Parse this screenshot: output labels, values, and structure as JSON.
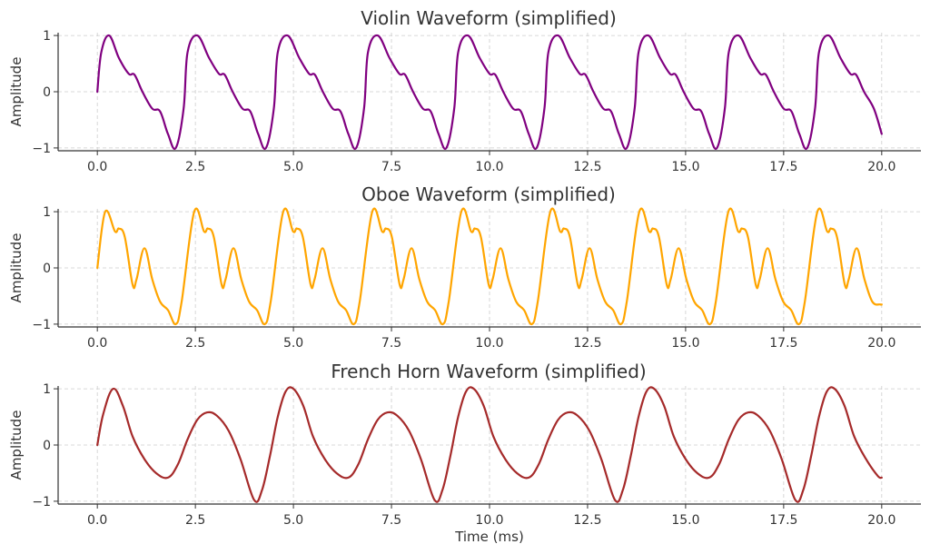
{
  "chart_data": [
    {
      "type": "line",
      "title": "Violin Waveform (simplified)",
      "xlabel": "",
      "ylabel": "Amplitude",
      "xlim": [
        -1.0,
        21.0
      ],
      "ylim": [
        -1.05,
        1.05
      ],
      "xticks": [
        0.0,
        2.5,
        5.0,
        7.5,
        10.0,
        12.5,
        15.0,
        17.5,
        20.0
      ],
      "xtick_labels": [
        "0.0",
        "2.5",
        "5.0",
        "7.5",
        "10.0",
        "12.5",
        "15.0",
        "17.5",
        "20.0"
      ],
      "yticks": [
        1,
        0,
        -1
      ],
      "ytick_labels": [
        "1",
        "0",
        "−1"
      ],
      "grid": true,
      "color": "#800080",
      "series": [
        {
          "x": [
            0.0,
            0.1,
            0.3,
            0.55,
            0.8,
            0.95,
            1.15,
            1.4,
            1.6,
            1.8,
            2.0,
            2.2,
            2.3,
            2.55,
            2.85,
            3.1,
            3.25,
            3.45,
            3.7,
            3.9,
            4.1,
            4.3,
            4.5,
            4.6,
            4.85,
            5.15,
            5.4,
            5.55,
            5.75,
            6.0,
            6.2,
            6.4,
            6.6,
            6.8,
            6.9,
            7.15,
            7.45,
            7.7,
            7.85,
            8.05,
            8.3,
            8.5,
            8.7,
            8.9,
            9.1,
            9.2,
            9.45,
            9.75,
            10.0,
            10.15,
            10.35,
            10.6,
            10.8,
            11.0,
            11.2,
            11.4,
            11.5,
            11.75,
            12.05,
            12.3,
            12.45,
            12.65,
            12.9,
            13.1,
            13.3,
            13.5,
            13.7,
            13.8,
            14.05,
            14.35,
            14.6,
            14.75,
            14.95,
            15.2,
            15.4,
            15.6,
            15.8,
            16.0,
            16.1,
            16.35,
            16.65,
            16.9,
            17.05,
            17.25,
            17.5,
            17.7,
            17.9,
            18.1,
            18.3,
            18.4,
            18.65,
            18.95,
            19.2,
            19.35,
            19.55,
            19.8,
            20.0
          ],
          "values": [
            0.0,
            0.7,
            1.0,
            0.6,
            0.32,
            0.3,
            0.0,
            -0.3,
            -0.35,
            -0.75,
            -1.0,
            -0.3,
            0.7,
            1.0,
            0.6,
            0.32,
            0.3,
            0.0,
            -0.3,
            -0.35,
            -0.75,
            -1.0,
            -0.3,
            0.7,
            1.0,
            0.6,
            0.32,
            0.3,
            0.0,
            -0.3,
            -0.35,
            -0.75,
            -1.0,
            -0.3,
            0.7,
            1.0,
            0.6,
            0.32,
            0.3,
            0.0,
            -0.3,
            -0.35,
            -0.75,
            -1.0,
            -0.3,
            0.7,
            1.0,
            0.6,
            0.32,
            0.3,
            0.0,
            -0.3,
            -0.35,
            -0.75,
            -1.0,
            -0.3,
            0.7,
            1.0,
            0.6,
            0.32,
            0.3,
            0.0,
            -0.3,
            -0.35,
            -0.75,
            -1.0,
            -0.3,
            0.7,
            1.0,
            0.6,
            0.32,
            0.3,
            0.0,
            -0.3,
            -0.35,
            -0.75,
            -1.0,
            -0.3,
            0.7,
            1.0,
            0.6,
            0.32,
            0.3,
            0.0,
            -0.3,
            -0.35,
            -0.75,
            -1.0,
            -0.3,
            0.7,
            1.0,
            0.6,
            0.32,
            0.3,
            0.0,
            -0.3,
            -0.75
          ]
        }
      ]
    },
    {
      "type": "line",
      "title": "Oboe Waveform (simplified)",
      "xlabel": "",
      "ylabel": "Amplitude",
      "xlim": [
        -1.0,
        21.0
      ],
      "ylim": [
        -1.05,
        1.05
      ],
      "xticks": [
        0.0,
        2.5,
        5.0,
        7.5,
        10.0,
        12.5,
        15.0,
        17.5,
        20.0
      ],
      "xtick_labels": [
        "0.0",
        "2.5",
        "5.0",
        "7.5",
        "10.0",
        "12.5",
        "15.0",
        "17.5",
        "20.0"
      ],
      "yticks": [
        1,
        0,
        -1
      ],
      "ytick_labels": [
        "1",
        "0",
        "−1"
      ],
      "grid": true,
      "color": "#ffa500",
      "series": [
        {
          "x": [
            0.0,
            0.2,
            0.45,
            0.55,
            0.7,
            0.9,
            1.0,
            1.2,
            1.4,
            1.6,
            1.8,
            2.0,
            2.15,
            2.47,
            2.72,
            2.82,
            2.97,
            3.17,
            3.27,
            3.47,
            3.67,
            3.87,
            4.07,
            4.27,
            4.42,
            4.74,
            4.99,
            5.09,
            5.24,
            5.44,
            5.54,
            5.74,
            5.94,
            6.14,
            6.34,
            6.54,
            6.69,
            7.01,
            7.26,
            7.36,
            7.51,
            7.71,
            7.81,
            8.01,
            8.21,
            8.41,
            8.61,
            8.81,
            8.96,
            9.28,
            9.53,
            9.63,
            9.78,
            9.98,
            10.08,
            10.28,
            10.48,
            10.68,
            10.88,
            11.08,
            11.23,
            11.55,
            11.8,
            11.9,
            12.05,
            12.25,
            12.35,
            12.55,
            12.75,
            12.95,
            13.15,
            13.35,
            13.5,
            13.82,
            14.07,
            14.17,
            14.32,
            14.52,
            14.62,
            14.82,
            15.02,
            15.22,
            15.42,
            15.62,
            15.77,
            16.09,
            16.34,
            16.44,
            16.59,
            16.79,
            16.89,
            17.09,
            17.29,
            17.49,
            17.69,
            17.89,
            18.04,
            18.36,
            18.61,
            18.71,
            18.86,
            19.06,
            19.16,
            19.36,
            19.56,
            19.76,
            19.96,
            20.0
          ],
          "values": [
            0.0,
            1.0,
            0.65,
            0.7,
            0.55,
            -0.3,
            -0.2,
            0.35,
            -0.2,
            -0.6,
            -0.75,
            -1.0,
            -0.6,
            1.0,
            0.65,
            0.7,
            0.55,
            -0.3,
            -0.2,
            0.35,
            -0.2,
            -0.6,
            -0.75,
            -1.0,
            -0.6,
            1.0,
            0.65,
            0.7,
            0.55,
            -0.3,
            -0.2,
            0.35,
            -0.2,
            -0.6,
            -0.75,
            -1.0,
            -0.6,
            1.0,
            0.65,
            0.7,
            0.55,
            -0.3,
            -0.2,
            0.35,
            -0.2,
            -0.6,
            -0.75,
            -1.0,
            -0.6,
            1.0,
            0.65,
            0.7,
            0.55,
            -0.3,
            -0.2,
            0.35,
            -0.2,
            -0.6,
            -0.75,
            -1.0,
            -0.6,
            1.0,
            0.65,
            0.7,
            0.55,
            -0.3,
            -0.2,
            0.35,
            -0.2,
            -0.6,
            -0.75,
            -1.0,
            -0.6,
            1.0,
            0.65,
            0.7,
            0.55,
            -0.3,
            -0.2,
            0.35,
            -0.2,
            -0.6,
            -0.75,
            -1.0,
            -0.6,
            1.0,
            0.65,
            0.7,
            0.55,
            -0.3,
            -0.2,
            0.35,
            -0.2,
            -0.6,
            -0.75,
            -1.0,
            -0.6,
            1.0,
            0.65,
            0.7,
            0.55,
            -0.3,
            -0.2,
            0.35,
            -0.2,
            -0.6,
            -0.65,
            -0.65
          ]
        }
      ]
    },
    {
      "type": "line",
      "title": "French Horn Waveform (simplified)",
      "xlabel": "Time (ms)",
      "ylabel": "Amplitude",
      "xlim": [
        -1.0,
        21.0
      ],
      "ylim": [
        -1.05,
        1.05
      ],
      "xticks": [
        0.0,
        2.5,
        5.0,
        7.5,
        10.0,
        12.5,
        15.0,
        17.5,
        20.0
      ],
      "xtick_labels": [
        "0.0",
        "2.5",
        "5.0",
        "7.5",
        "10.0",
        "12.5",
        "15.0",
        "17.5",
        "20.0"
      ],
      "yticks": [
        1,
        0,
        -1
      ],
      "ytick_labels": [
        "1",
        "0",
        "−1"
      ],
      "grid": true,
      "color": "#a52a2a",
      "series": [
        {
          "x": [
            0.0,
            0.15,
            0.4,
            0.65,
            0.9,
            1.2,
            1.5,
            1.8,
            2.05,
            2.3,
            2.55,
            2.8,
            3.05,
            3.35,
            3.65,
            4.0,
            4.2,
            4.4,
            4.6,
            4.8,
            5.0,
            5.25,
            5.5,
            5.8,
            6.1,
            6.4,
            6.65,
            6.9,
            7.15,
            7.4,
            7.65,
            7.95,
            8.25,
            8.6,
            8.8,
            9.0,
            9.2,
            9.4,
            9.6,
            9.85,
            10.1,
            10.4,
            10.7,
            11.0,
            11.25,
            11.5,
            11.75,
            12.0,
            12.25,
            12.55,
            12.85,
            13.2,
            13.4,
            13.6,
            13.8,
            14.0,
            14.2,
            14.45,
            14.7,
            15.0,
            15.3,
            15.6,
            15.85,
            16.1,
            16.35,
            16.6,
            16.85,
            17.15,
            17.45,
            17.8,
            18.0,
            18.2,
            18.4,
            18.6,
            18.8,
            19.05,
            19.3,
            19.6,
            19.9,
            20.0
          ],
          "values": [
            0.0,
            0.55,
            1.0,
            0.7,
            0.15,
            -0.25,
            -0.5,
            -0.58,
            -0.35,
            0.1,
            0.45,
            0.58,
            0.52,
            0.25,
            -0.25,
            -0.98,
            -0.8,
            -0.2,
            0.5,
            0.95,
            1.0,
            0.7,
            0.15,
            -0.25,
            -0.5,
            -0.58,
            -0.35,
            0.1,
            0.45,
            0.58,
            0.52,
            0.25,
            -0.25,
            -0.98,
            -0.8,
            -0.2,
            0.5,
            0.95,
            1.0,
            0.7,
            0.15,
            -0.25,
            -0.5,
            -0.58,
            -0.35,
            0.1,
            0.45,
            0.58,
            0.52,
            0.25,
            -0.25,
            -0.98,
            -0.8,
            -0.2,
            0.5,
            0.95,
            1.0,
            0.7,
            0.15,
            -0.25,
            -0.5,
            -0.58,
            -0.35,
            0.1,
            0.45,
            0.58,
            0.52,
            0.25,
            -0.25,
            -0.98,
            -0.8,
            -0.2,
            0.5,
            0.95,
            1.0,
            0.7,
            0.15,
            -0.25,
            -0.55,
            -0.58
          ]
        }
      ]
    }
  ]
}
